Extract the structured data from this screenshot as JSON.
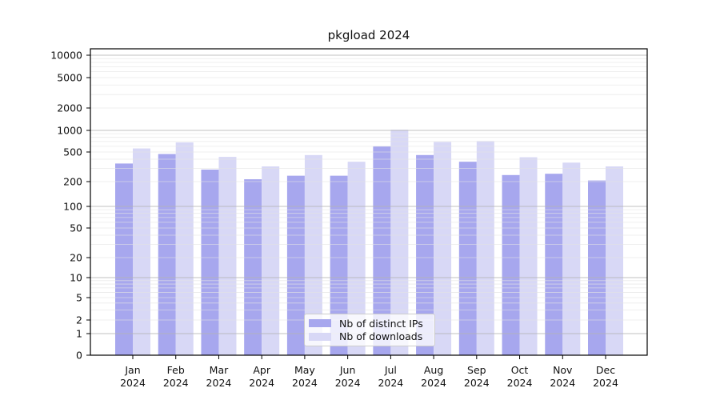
{
  "chart_data": {
    "type": "bar",
    "title": "pkgload 2024",
    "categories": [
      "Jan",
      "Feb",
      "Mar",
      "Apr",
      "May",
      "Jun",
      "Jul",
      "Aug",
      "Sep",
      "Oct",
      "Nov",
      "Dec"
    ],
    "category_year_line": "2024",
    "series": [
      {
        "name": "Nb of distinct IPs",
        "color": "#a7a7ee",
        "values": [
          350,
          470,
          290,
          215,
          240,
          240,
          600,
          455,
          370,
          245,
          255,
          207
        ]
      },
      {
        "name": "Nb of downloads",
        "color": "#d8d8f6",
        "values": [
          560,
          680,
          430,
          320,
          455,
          370,
          1020,
          690,
          710,
          425,
          360,
          320
        ]
      }
    ],
    "xlabel": "",
    "ylabel": "",
    "yscale": "symlog",
    "y_ticks": [
      0,
      1,
      2,
      5,
      10,
      20,
      50,
      100,
      200,
      500,
      1000,
      2000,
      5000,
      10000
    ],
    "ylim": [
      0,
      12000
    ],
    "grid": "horizontal major and log-minor lines",
    "legend_position": "lower center",
    "colors": {
      "axis": "#000000",
      "major_grid": "#b3b3b3",
      "minor_grid": "#e3e3e3",
      "background": "#ffffff",
      "text": "#111111"
    }
  }
}
